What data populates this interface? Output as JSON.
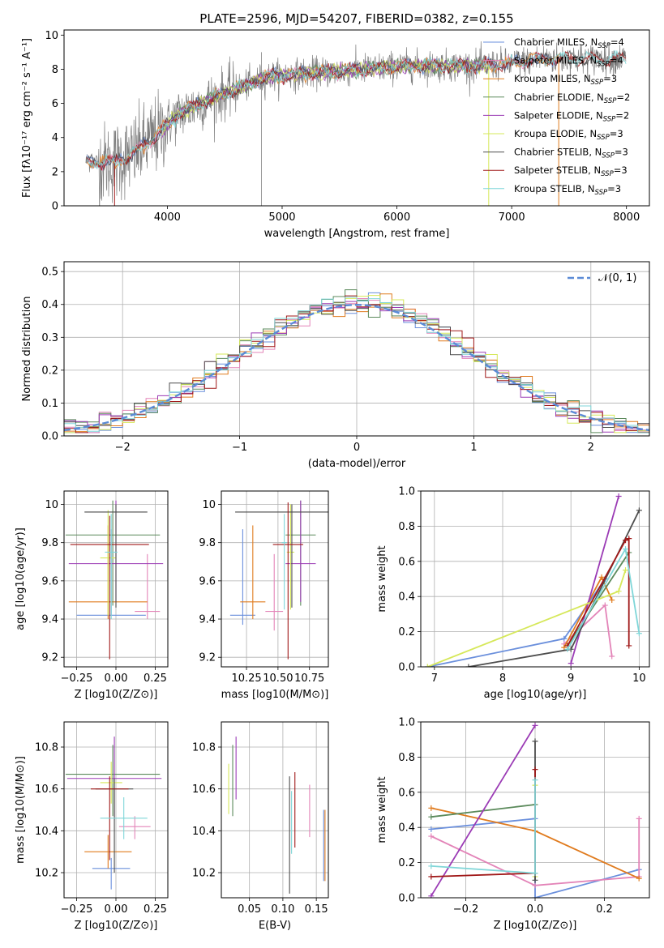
{
  "chart_data": [
    {
      "id": "spectrum",
      "type": "line",
      "title": "PLATE=2596, MJD=54207, FIBERID=0382, z=0.155",
      "xlabel": "wavelength [Angstrom, rest frame]",
      "ylabel": "Flux [fλ10⁻¹⁷ erg cm⁻² s⁻¹ A⁻¹]",
      "xlim": [
        3100,
        8200
      ],
      "ylim": [
        0,
        10.3
      ],
      "xticks": [
        4000,
        5000,
        6000,
        7000,
        8000
      ],
      "yticks": [
        0,
        2,
        4,
        6,
        8,
        10
      ],
      "grid": false,
      "legend_position": "top-right",
      "legend": [
        {
          "label": "Chabrier MILES, N",
          "sub": "SSP",
          "val": "=4",
          "color": "#6a8fdc"
        },
        {
          "label": "Salpeter MILES, N",
          "sub": "SSP",
          "val": "=4",
          "color": "#e384b8"
        },
        {
          "label": "Kroupa MILES, N",
          "sub": "SSP",
          "val": "=3",
          "color": "#e07b1e"
        },
        {
          "label": "Chabrier ELODIE, N",
          "sub": "SSP",
          "val": "=2",
          "color": "#5b8a5b"
        },
        {
          "label": "Salpeter ELODIE, N",
          "sub": "SSP",
          "val": "=2",
          "color": "#9b3bb5"
        },
        {
          "label": "Kroupa ELODIE, N",
          "sub": "SSP",
          "val": "=3",
          "color": "#d6e85a"
        },
        {
          "label": "Chabrier STELIB, N",
          "sub": "SSP",
          "val": "=3",
          "color": "#4d4d4d"
        },
        {
          "label": "Salpeter STELIB, N",
          "sub": "SSP",
          "val": "=3",
          "color": "#a01818"
        },
        {
          "label": "Kroupa STELIB, N",
          "sub": "SSP",
          "val": "=3",
          "color": "#7fd6d8"
        }
      ],
      "data_color": "#808080",
      "model_anchor_x": [
        3300,
        3500,
        3700,
        3900,
        4100,
        4300,
        4500,
        4700,
        4900,
        5100,
        5300,
        5500,
        5700,
        5900,
        6100,
        6300,
        6500,
        6700,
        6900,
        7000,
        7150,
        7300,
        7420
      ],
      "model_anchor_y": [
        2.6,
        2.5,
        3.0,
        4.1,
        5.4,
        6.0,
        6.6,
        7.1,
        7.6,
        7.7,
        7.8,
        7.9,
        8.0,
        8.1,
        8.2,
        8.2,
        8.2,
        8.2,
        8.3,
        8.3,
        8.5,
        8.6,
        8.6
      ]
    },
    {
      "id": "residuals",
      "type": "step",
      "xlabel": "(data-model)/error",
      "ylabel": "Normed distribution",
      "xlim": [
        -2.5,
        2.5
      ],
      "ylim": [
        0,
        0.53
      ],
      "xticks": [
        -2,
        -1,
        0,
        1,
        2
      ],
      "xticklabels": [
        "−2",
        "−1",
        "0",
        "1",
        "2"
      ],
      "yticks": [
        0.0,
        0.1,
        0.2,
        0.3,
        0.4,
        0.5
      ],
      "grid": true,
      "legend_position": "top-right",
      "legend_label": "𝒩(0, 1)",
      "gauss_color": "#5b8bd6",
      "bin_width": 0.1
    },
    {
      "id": "age_vs_Z",
      "type": "errorbar",
      "xlabel": "Z [log10(Z/Z⊙)]",
      "ylabel": "age  [log10(age/yr)]",
      "xlim": [
        -0.33,
        0.33
      ],
      "ylim": [
        9.15,
        10.07
      ],
      "xticks": [
        -0.25,
        0.0,
        0.25
      ],
      "xticklabels": [
        "−0.25",
        "0.00",
        "0.25"
      ],
      "yticks": [
        9.2,
        9.4,
        9.6,
        9.8,
        10.0
      ],
      "grid": true,
      "points": [
        {
          "model": "Chabrier MILES",
          "x": -0.03,
          "y": 9.42,
          "xerr": 0.22,
          "yerr": [
            0.0,
            0.45
          ]
        },
        {
          "model": "Salpeter MILES",
          "x": 0.2,
          "y": 9.44,
          "xerr": 0.08,
          "yerr": [
            0.04,
            0.3
          ]
        },
        {
          "model": "Kroupa MILES",
          "x": -0.05,
          "y": 9.49,
          "xerr": 0.25,
          "yerr": [
            0.09,
            0.4
          ]
        },
        {
          "model": "Chabrier ELODIE",
          "x": -0.02,
          "y": 9.84,
          "xerr": 0.3,
          "yerr": [
            0.37,
            0.18
          ]
        },
        {
          "model": "Salpeter ELODIE",
          "x": 0.0,
          "y": 9.69,
          "xerr": 0.3,
          "yerr": [
            0.2,
            0.33
          ]
        },
        {
          "model": "Kroupa ELODIE",
          "x": -0.05,
          "y": 9.72,
          "xerr": 0.05,
          "yerr": [
            0.3,
            0.25
          ]
        },
        {
          "model": "Chabrier STELIB",
          "x": 0.0,
          "y": 9.96,
          "xerr": 0.2,
          "yerr": [
            0.5,
            0.04
          ]
        },
        {
          "model": "Salpeter STELIB",
          "x": -0.04,
          "y": 9.79,
          "xerr": 0.25,
          "yerr": [
            0.6,
            0.15
          ]
        },
        {
          "model": "Kroupa STELIB",
          "x": -0.03,
          "y": 9.75,
          "xerr": 0.04,
          "yerr": [
            0.35,
            0.2
          ]
        }
      ]
    },
    {
      "id": "age_vs_mass",
      "type": "errorbar",
      "xlabel": "mass [log10(M/M⊙)]",
      "ylabel": "",
      "xlim": [
        10.05,
        10.9
      ],
      "ylim": [
        9.15,
        10.07
      ],
      "xticks": [
        10.25,
        10.5,
        10.75
      ],
      "xticklabels": [
        "10.25",
        "10.50",
        "10.75"
      ],
      "yticks": [
        9.2,
        9.4,
        9.6,
        9.8,
        10.0
      ],
      "grid": true,
      "points": [
        {
          "model": "Chabrier MILES",
          "x": 10.22,
          "y": 9.42,
          "xerr": 0.1,
          "yerr": [
            0.05,
            0.45
          ]
        },
        {
          "model": "Salpeter MILES",
          "x": 10.47,
          "y": 9.44,
          "xerr": 0.07,
          "yerr": [
            0.1,
            0.3
          ]
        },
        {
          "model": "Kroupa MILES",
          "x": 10.3,
          "y": 9.49,
          "xerr": 0.1,
          "yerr": [
            0.09,
            0.4
          ]
        },
        {
          "model": "Chabrier ELODIE",
          "x": 10.68,
          "y": 9.84,
          "xerr": 0.12,
          "yerr": [
            0.37,
            0.18
          ]
        },
        {
          "model": "Salpeter ELODIE",
          "x": 10.68,
          "y": 9.69,
          "xerr": 0.12,
          "yerr": [
            0.2,
            0.33
          ]
        },
        {
          "model": "Kroupa ELODIE",
          "x": 10.6,
          "y": 9.75,
          "xerr": 0.03,
          "yerr": [
            0.3,
            0.25
          ]
        },
        {
          "model": "Chabrier STELIB",
          "x": 10.61,
          "y": 9.96,
          "xerr": 0.45,
          "yerr": [
            0.5,
            0.04
          ]
        },
        {
          "model": "Salpeter STELIB",
          "x": 10.58,
          "y": 9.79,
          "xerr": 0.12,
          "yerr": [
            0.6,
            0.22
          ]
        },
        {
          "model": "Kroupa STELIB",
          "x": 10.55,
          "y": 9.8,
          "xerr": 0.02,
          "yerr": [
            0.35,
            0.15
          ]
        }
      ]
    },
    {
      "id": "weight_vs_age",
      "type": "line",
      "xlabel": "age  [log10(age/yr)]",
      "ylabel": "mass weight",
      "xlim": [
        6.8,
        10.15
      ],
      "ylim": [
        0,
        1.0
      ],
      "xticks": [
        7,
        8,
        9,
        10
      ],
      "yticks": [
        0.0,
        0.2,
        0.4,
        0.6,
        0.8,
        1.0
      ],
      "grid": true,
      "series": [
        {
          "model": "Chabrier MILES",
          "x": [
            6.9,
            8.9,
            9.5
          ],
          "y": [
            0.0,
            0.16,
            0.5
          ]
        },
        {
          "model": "Salpeter MILES",
          "x": [
            8.9,
            9.5,
            9.6
          ],
          "y": [
            0.13,
            0.35,
            0.06
          ]
        },
        {
          "model": "Kroupa MILES",
          "x": [
            8.9,
            9.45,
            9.6
          ],
          "y": [
            0.11,
            0.51,
            0.38
          ]
        },
        {
          "model": "Chabrier ELODIE",
          "x": [
            8.95,
            9.85
          ],
          "y": [
            0.12,
            0.65
          ]
        },
        {
          "model": "Salpeter ELODIE",
          "x": [
            9.0,
            9.7
          ],
          "y": [
            0.02,
            0.97
          ]
        },
        {
          "model": "Kroupa ELODIE",
          "x": [
            6.9,
            9.7,
            9.8
          ],
          "y": [
            0.0,
            0.43,
            0.55
          ]
        },
        {
          "model": "Chabrier STELIB",
          "x": [
            7.5,
            9.0,
            10.0
          ],
          "y": [
            0.0,
            0.1,
            0.89
          ]
        },
        {
          "model": "Salpeter STELIB",
          "x": [
            8.95,
            9.8,
            9.85,
            9.85
          ],
          "y": [
            0.12,
            0.72,
            0.73,
            0.12
          ]
        },
        {
          "model": "Kroupa STELIB",
          "x": [
            8.95,
            9.8,
            10.0
          ],
          "y": [
            0.1,
            0.67,
            0.19
          ]
        }
      ]
    },
    {
      "id": "mass_vs_Z",
      "type": "errorbar",
      "xlabel": "Z [log10(Z/Z⊙)]",
      "ylabel": "mass [log10(M/M⊙)]",
      "xlim": [
        -0.33,
        0.33
      ],
      "ylim": [
        10.08,
        10.92
      ],
      "xticks": [
        -0.25,
        0.0,
        0.25
      ],
      "xticklabels": [
        "−0.25",
        "0.00",
        "0.25"
      ],
      "yticks": [
        10.2,
        10.4,
        10.6,
        10.8
      ],
      "grid": true,
      "points": [
        {
          "model": "Chabrier MILES",
          "x": -0.03,
          "y": 10.22,
          "xerr": 0.12,
          "yerr": [
            0.1,
            0.05
          ]
        },
        {
          "model": "Salpeter MILES",
          "x": 0.12,
          "y": 10.42,
          "xerr": 0.1,
          "yerr": [
            0.06,
            0.05
          ]
        },
        {
          "model": "Kroupa MILES",
          "x": -0.05,
          "y": 10.3,
          "xerr": 0.15,
          "yerr": [
            0.08,
            0.08
          ]
        },
        {
          "model": "Chabrier ELODIE",
          "x": -0.02,
          "y": 10.67,
          "xerr": 0.3,
          "yerr": [
            0.2,
            0.14
          ]
        },
        {
          "model": "Salpeter ELODIE",
          "x": -0.01,
          "y": 10.65,
          "xerr": 0.3,
          "yerr": [
            0.2,
            0.2
          ]
        },
        {
          "model": "Kroupa ELODIE",
          "x": -0.03,
          "y": 10.63,
          "xerr": 0.07,
          "yerr": [
            0.1,
            0.1
          ]
        },
        {
          "model": "Chabrier STELIB",
          "x": -0.01,
          "y": 10.6,
          "xerr": 0.12,
          "yerr": [
            0.4,
            0.05
          ]
        },
        {
          "model": "Salpeter STELIB",
          "x": -0.04,
          "y": 10.6,
          "xerr": 0.12,
          "yerr": [
            0.34,
            0.06
          ]
        },
        {
          "model": "Kroupa STELIB",
          "x": 0.05,
          "y": 10.46,
          "xerr": 0.15,
          "yerr": [
            0.1,
            0.1
          ]
        }
      ]
    },
    {
      "id": "mass_vs_EBV",
      "type": "errorbar",
      "xlabel": "E(B-V)",
      "ylabel": "",
      "xlim": [
        0.008,
        0.168
      ],
      "ylim": [
        10.08,
        10.92
      ],
      "xticks": [
        0.05,
        0.1,
        0.15
      ],
      "xticklabels": [
        "0.05",
        "0.10",
        "0.15"
      ],
      "yticks": [
        10.2,
        10.4,
        10.6,
        10.8
      ],
      "grid": true,
      "points": [
        {
          "model": "Kroupa ELODIE",
          "x": 0.019,
          "y": 10.6,
          "xerr": 0,
          "yerr": [
            0.12,
            0.12
          ]
        },
        {
          "model": "Salpeter ELODIE",
          "x": 0.03,
          "y": 10.7,
          "xerr": 0,
          "yerr": [
            0.15,
            0.15
          ]
        },
        {
          "model": "Chabrier ELODIE",
          "x": 0.025,
          "y": 10.64,
          "xerr": 0,
          "yerr": [
            0.17,
            0.17
          ]
        },
        {
          "model": "Chabrier STELIB",
          "x": 0.11,
          "y": 10.38,
          "xerr": 0,
          "yerr": [
            0.28,
            0.28
          ]
        },
        {
          "model": "Salpeter STELIB",
          "x": 0.118,
          "y": 10.5,
          "xerr": 0,
          "yerr": [
            0.18,
            0.18
          ]
        },
        {
          "model": "Kroupa STELIB",
          "x": 0.113,
          "y": 10.44,
          "xerr": 0,
          "yerr": [
            0.15,
            0.15
          ]
        },
        {
          "model": "Salpeter MILES",
          "x": 0.14,
          "y": 10.42,
          "xerr": 0,
          "yerr": [
            0.05,
            0.2
          ]
        },
        {
          "model": "Kroupa MILES",
          "x": 0.163,
          "y": 10.3,
          "xerr": 0,
          "yerr": [
            0.14,
            0.2
          ]
        },
        {
          "model": "Chabrier MILES",
          "x": 0.161,
          "y": 10.33,
          "xerr": 0,
          "yerr": [
            0.17,
            0.17
          ]
        }
      ]
    },
    {
      "id": "weight_vs_Z",
      "type": "line",
      "xlabel": "Z [log10(Z/Z⊙)]",
      "ylabel": "mass weight",
      "xlim": [
        -0.33,
        0.33
      ],
      "ylim": [
        0,
        1.0
      ],
      "xticks": [
        -0.2,
        0.0,
        0.2
      ],
      "xticklabels": [
        "−0.2",
        "0.0",
        "0.2"
      ],
      "yticks": [
        0.0,
        0.2,
        0.4,
        0.6,
        0.8,
        1.0
      ],
      "grid": true,
      "series": [
        {
          "model": "Chabrier MILES",
          "x": [
            -0.3,
            0.0,
            0.0,
            0.3
          ],
          "y": [
            0.39,
            0.45,
            0.0,
            0.16
          ]
        },
        {
          "model": "Salpeter MILES",
          "x": [
            -0.3,
            0.0,
            0.3,
            0.3
          ],
          "y": [
            0.35,
            0.07,
            0.12,
            0.45
          ]
        },
        {
          "model": "Kroupa MILES",
          "x": [
            -0.3,
            0.0,
            0.3
          ],
          "y": [
            0.51,
            0.38,
            0.11
          ]
        },
        {
          "model": "Chabrier ELODIE",
          "x": [
            -0.3,
            0.0
          ],
          "y": [
            0.46,
            0.53
          ]
        },
        {
          "model": "Salpeter ELODIE",
          "x": [
            -0.3,
            0.0
          ],
          "y": [
            0.01,
            0.98
          ]
        },
        {
          "model": "Kroupa ELODIE",
          "x": [
            0.0,
            0.0
          ],
          "y": [
            0.12,
            0.64
          ]
        },
        {
          "model": "Chabrier STELIB",
          "x": [
            0.0,
            0.0
          ],
          "y": [
            0.1,
            0.89
          ]
        },
        {
          "model": "Salpeter STELIB",
          "x": [
            -0.3,
            0.0,
            0.0
          ],
          "y": [
            0.12,
            0.14,
            0.73
          ]
        },
        {
          "model": "Kroupa STELIB",
          "x": [
            -0.3,
            0.0,
            0.0
          ],
          "y": [
            0.18,
            0.14,
            0.67
          ]
        }
      ]
    }
  ],
  "model_colors": {
    "Chabrier MILES": "#6a8fdc",
    "Salpeter MILES": "#e384b8",
    "Kroupa MILES": "#e07b1e",
    "Chabrier ELODIE": "#5b8a5b",
    "Salpeter ELODIE": "#9b3bb5",
    "Kroupa ELODIE": "#d6e85a",
    "Chabrier STELIB": "#4d4d4d",
    "Salpeter STELIB": "#a01818",
    "Kroupa STELIB": "#7fd6d8"
  }
}
